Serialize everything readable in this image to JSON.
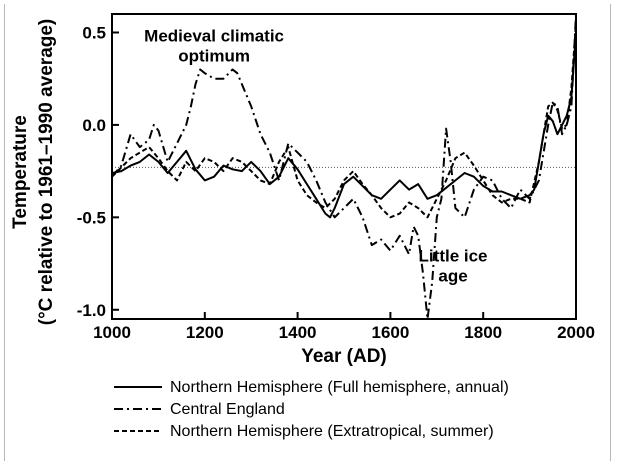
{
  "chart_data": {
    "type": "line",
    "xlabel": "Year (AD)",
    "ylabel_line1": "Temperature",
    "ylabel_line2": "(°C relative to 1961–1990 average)",
    "xlim": [
      1000,
      2000
    ],
    "ylim": [
      -1.05,
      0.6
    ],
    "xticks": [
      1000,
      1200,
      1400,
      1600,
      1800,
      2000
    ],
    "yticks": [
      0.5,
      0.0,
      -0.5,
      -1.0
    ],
    "ytick_labels": [
      "0.5",
      "0.0",
      "-0.5",
      "-1.0"
    ],
    "grid": false,
    "reference_line": {
      "y": -0.23,
      "style": "dotted"
    },
    "annotations": [
      {
        "lines": [
          "Medieval climatic",
          "optimum"
        ],
        "x": 1220,
        "y": 0.45
      },
      {
        "lines": [
          "Little ice",
          "age"
        ],
        "x": 1735,
        "y": -0.74
      }
    ],
    "legend_placement": "bottom",
    "series": [
      {
        "name": "Northern Hemisphere (Full hemisphere, annual)",
        "style": "solid",
        "x": [
          1000,
          1020,
          1040,
          1060,
          1080,
          1100,
          1120,
          1140,
          1160,
          1180,
          1200,
          1220,
          1240,
          1260,
          1280,
          1300,
          1320,
          1340,
          1360,
          1380,
          1400,
          1420,
          1440,
          1460,
          1470,
          1480,
          1500,
          1520,
          1540,
          1560,
          1580,
          1600,
          1620,
          1640,
          1660,
          1680,
          1700,
          1720,
          1740,
          1760,
          1780,
          1800,
          1820,
          1840,
          1860,
          1880,
          1900,
          1910,
          1920,
          1930,
          1940,
          1950,
          1960,
          1970,
          1980,
          1990,
          2000
        ],
        "y": [
          -0.26,
          -0.25,
          -0.22,
          -0.2,
          -0.16,
          -0.2,
          -0.26,
          -0.2,
          -0.14,
          -0.24,
          -0.3,
          -0.28,
          -0.22,
          -0.24,
          -0.25,
          -0.2,
          -0.25,
          -0.32,
          -0.28,
          -0.18,
          -0.24,
          -0.32,
          -0.4,
          -0.48,
          -0.5,
          -0.45,
          -0.32,
          -0.28,
          -0.33,
          -0.38,
          -0.4,
          -0.35,
          -0.3,
          -0.35,
          -0.32,
          -0.4,
          -0.38,
          -0.34,
          -0.3,
          -0.26,
          -0.28,
          -0.33,
          -0.36,
          -0.36,
          -0.38,
          -0.4,
          -0.38,
          -0.35,
          -0.2,
          -0.05,
          0.05,
          0.02,
          -0.05,
          0.0,
          0.05,
          0.15,
          0.5
        ]
      },
      {
        "name": "Central England",
        "style": "dashdot",
        "x": [
          1000,
          1020,
          1040,
          1060,
          1080,
          1090,
          1100,
          1120,
          1140,
          1160,
          1170,
          1180,
          1190,
          1200,
          1220,
          1240,
          1260,
          1270,
          1280,
          1300,
          1320,
          1340,
          1360,
          1380,
          1400,
          1420,
          1440,
          1460,
          1480,
          1500,
          1520,
          1540,
          1560,
          1580,
          1600,
          1620,
          1640,
          1650,
          1660,
          1670,
          1680,
          1690,
          1700,
          1710,
          1720,
          1730,
          1740,
          1760,
          1780,
          1800,
          1820,
          1840,
          1860,
          1880,
          1900,
          1920,
          1940,
          1950,
          1960,
          1970,
          1980,
          1990,
          2000
        ],
        "y": [
          -0.28,
          -0.22,
          -0.05,
          -0.12,
          -0.08,
          0.0,
          -0.03,
          -0.2,
          -0.1,
          0.0,
          0.1,
          0.22,
          0.3,
          0.28,
          0.25,
          0.25,
          0.3,
          0.28,
          0.22,
          0.1,
          -0.05,
          -0.15,
          -0.3,
          -0.1,
          -0.15,
          -0.2,
          -0.3,
          -0.42,
          -0.5,
          -0.45,
          -0.4,
          -0.5,
          -0.65,
          -0.62,
          -0.68,
          -0.6,
          -0.7,
          -0.55,
          -0.6,
          -0.8,
          -1.05,
          -0.85,
          -0.5,
          -0.4,
          -0.02,
          -0.2,
          -0.45,
          -0.5,
          -0.35,
          -0.28,
          -0.3,
          -0.4,
          -0.45,
          -0.35,
          -0.4,
          -0.3,
          0.0,
          0.12,
          0.1,
          -0.05,
          0.0,
          0.1,
          0.6
        ]
      },
      {
        "name": "Northern Hemisphere (Extratropical, summer)",
        "style": "dashed",
        "x": [
          1000,
          1020,
          1040,
          1060,
          1080,
          1100,
          1120,
          1140,
          1160,
          1180,
          1200,
          1220,
          1240,
          1260,
          1280,
          1300,
          1320,
          1340,
          1360,
          1380,
          1400,
          1420,
          1440,
          1460,
          1480,
          1500,
          1520,
          1540,
          1560,
          1580,
          1600,
          1620,
          1640,
          1660,
          1680,
          1700,
          1720,
          1740,
          1760,
          1780,
          1800,
          1820,
          1840,
          1860,
          1880,
          1900,
          1920,
          1940,
          1950,
          1960,
          1970,
          1980,
          1990,
          2000
        ],
        "y": [
          -0.28,
          -0.23,
          -0.18,
          -0.15,
          -0.12,
          -0.18,
          -0.25,
          -0.3,
          -0.2,
          -0.25,
          -0.18,
          -0.2,
          -0.25,
          -0.18,
          -0.2,
          -0.25,
          -0.3,
          -0.32,
          -0.2,
          -0.12,
          -0.3,
          -0.38,
          -0.42,
          -0.45,
          -0.4,
          -0.3,
          -0.25,
          -0.32,
          -0.38,
          -0.45,
          -0.5,
          -0.48,
          -0.42,
          -0.45,
          -0.5,
          -0.4,
          -0.3,
          -0.18,
          -0.15,
          -0.22,
          -0.3,
          -0.38,
          -0.42,
          -0.4,
          -0.4,
          -0.42,
          -0.2,
          0.1,
          0.12,
          0.08,
          -0.02,
          0.0,
          0.2,
          0.55
        ]
      }
    ]
  }
}
